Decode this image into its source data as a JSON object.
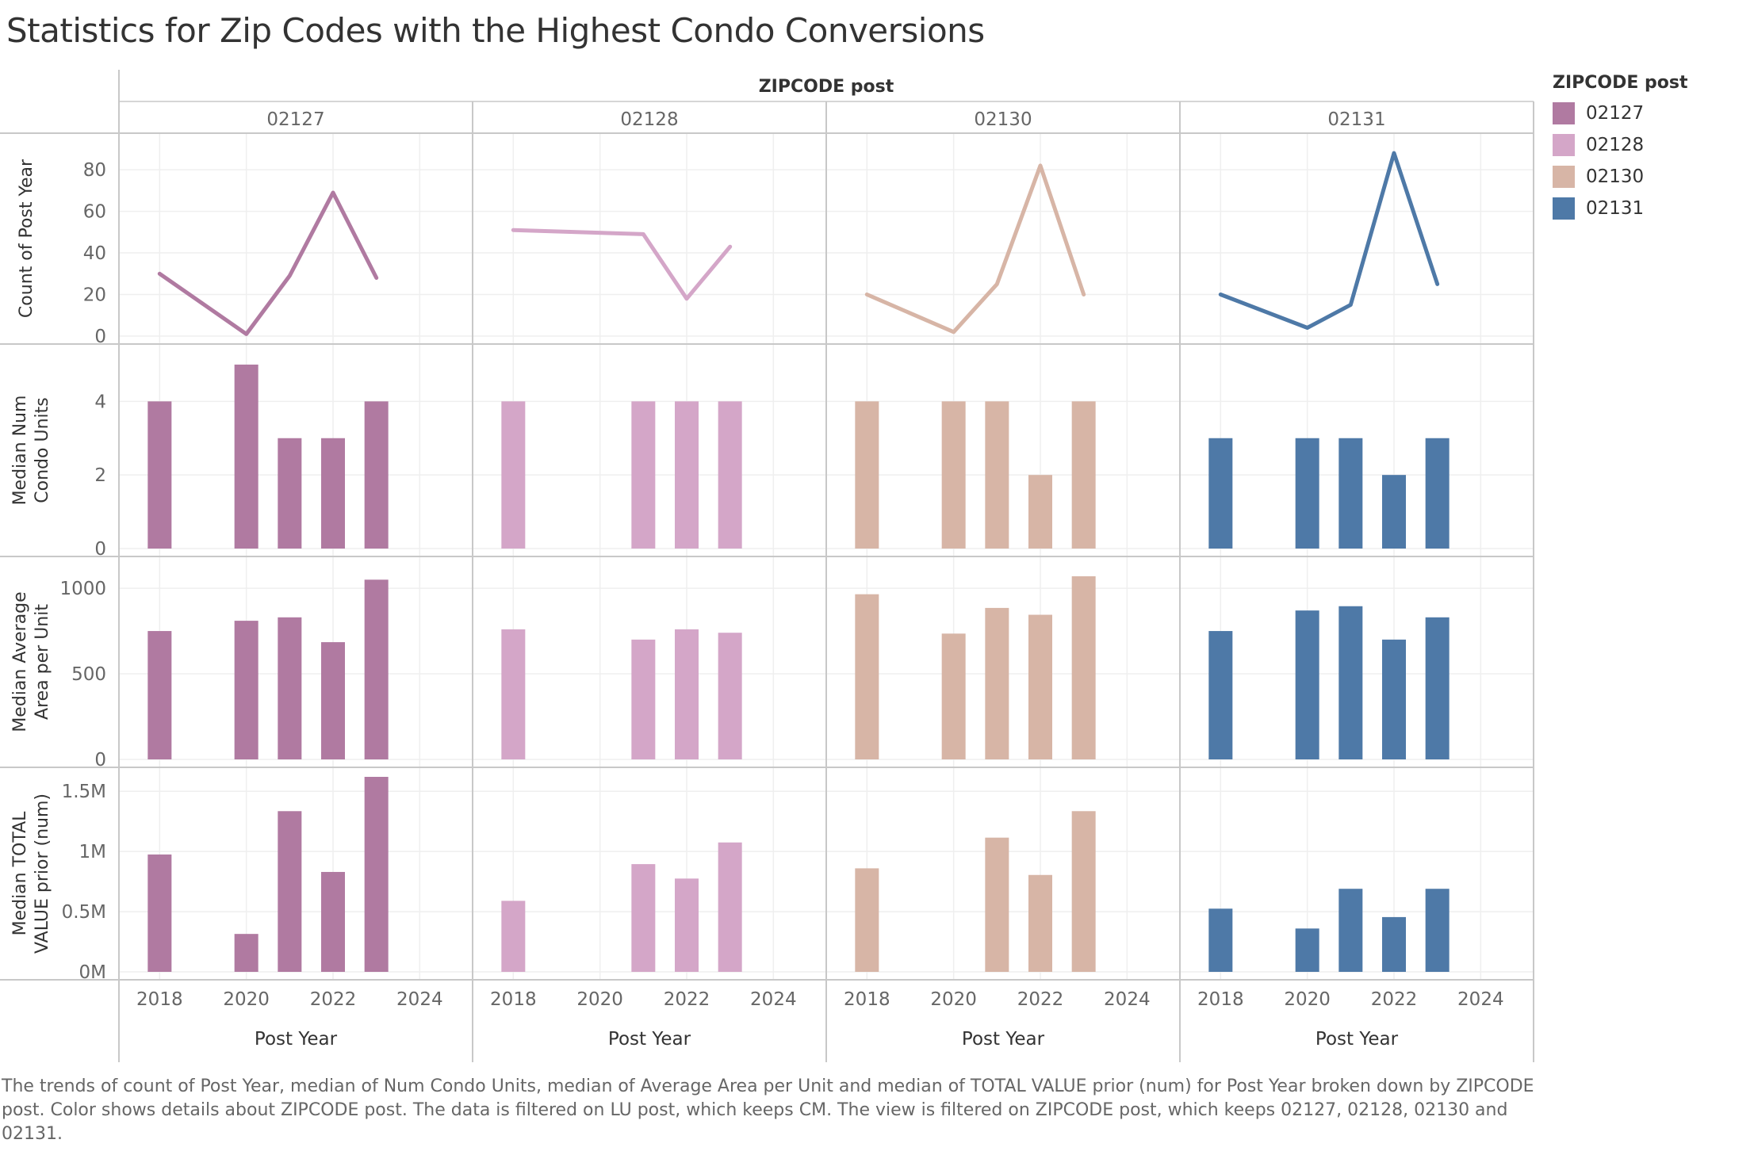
{
  "title": "Statistics for Zip Codes with the Highest Condo Conversions",
  "caption": "The trends of count of Post Year, median of Num Condo Units, median of Average Area per Unit and median of TOTAL VALUE prior (num) for Post Year broken down by ZIPCODE post.  Color shows details about ZIPCODE post. The data is filtered on LU post, which keeps CM. The view is filtered on ZIPCODE post, which keeps 02127, 02128, 02130 and 02131.",
  "legend": {
    "title": "ZIPCODE post",
    "items": [
      {
        "label": "02127",
        "color": "#B07AA1"
      },
      {
        "label": "02128",
        "color": "#D4A6C8"
      },
      {
        "label": "02130",
        "color": "#D7B5A6"
      },
      {
        "label": "02131",
        "color": "#4E79A7"
      }
    ]
  },
  "chart_data": {
    "type": "line-and-bar small multiples",
    "column_header": "ZIPCODE post",
    "columns": [
      "02127",
      "02128",
      "02130",
      "02131"
    ],
    "xlabel": "Post Year",
    "x_ticks": [
      "2018",
      "2020",
      "2022",
      "2024"
    ],
    "xlim": [
      2017.5,
      2025
    ],
    "rows": [
      {
        "ylabel": "Count of Post Year",
        "mark": "line",
        "ylim": [
          0,
          93
        ],
        "y_ticks": [
          {
            "v": 0,
            "t": "0"
          },
          {
            "v": 20,
            "t": "20"
          },
          {
            "v": 40,
            "t": "40"
          },
          {
            "v": 60,
            "t": "60"
          },
          {
            "v": 80,
            "t": "80"
          }
        ],
        "series": [
          {
            "name": "02127",
            "points": [
              {
                "x": 2018,
                "y": 30
              },
              {
                "x": 2020,
                "y": 1
              },
              {
                "x": 2021,
                "y": 29
              },
              {
                "x": 2022,
                "y": 69
              },
              {
                "x": 2023,
                "y": 28
              }
            ]
          },
          {
            "name": "02128",
            "points": [
              {
                "x": 2018,
                "y": 51
              },
              {
                "x": 2021,
                "y": 49
              },
              {
                "x": 2022,
                "y": 18
              },
              {
                "x": 2023,
                "y": 43
              }
            ]
          },
          {
            "name": "02130",
            "points": [
              {
                "x": 2018,
                "y": 20
              },
              {
                "x": 2020,
                "y": 2
              },
              {
                "x": 2021,
                "y": 25
              },
              {
                "x": 2022,
                "y": 82
              },
              {
                "x": 2023,
                "y": 20
              }
            ]
          },
          {
            "name": "02131",
            "points": [
              {
                "x": 2018,
                "y": 20
              },
              {
                "x": 2020,
                "y": 4
              },
              {
                "x": 2021,
                "y": 15
              },
              {
                "x": 2022,
                "y": 88
              },
              {
                "x": 2023,
                "y": 25
              }
            ]
          }
        ]
      },
      {
        "ylabel": "Median Num Condo Units",
        "mark": "bar",
        "ylim": [
          0,
          5.3
        ],
        "y_ticks": [
          {
            "v": 0,
            "t": "0"
          },
          {
            "v": 2,
            "t": "2"
          },
          {
            "v": 4,
            "t": "4"
          }
        ],
        "series": [
          {
            "name": "02127",
            "points": [
              {
                "x": 2018,
                "y": 4
              },
              {
                "x": 2020,
                "y": 5
              },
              {
                "x": 2021,
                "y": 3
              },
              {
                "x": 2022,
                "y": 3
              },
              {
                "x": 2023,
                "y": 4
              }
            ]
          },
          {
            "name": "02128",
            "points": [
              {
                "x": 2018,
                "y": 4
              },
              {
                "x": 2021,
                "y": 4
              },
              {
                "x": 2022,
                "y": 4
              },
              {
                "x": 2023,
                "y": 4
              }
            ]
          },
          {
            "name": "02130",
            "points": [
              {
                "x": 2018,
                "y": 4
              },
              {
                "x": 2020,
                "y": 4
              },
              {
                "x": 2021,
                "y": 4
              },
              {
                "x": 2022,
                "y": 2
              },
              {
                "x": 2023,
                "y": 4
              }
            ]
          },
          {
            "name": "02131",
            "points": [
              {
                "x": 2018,
                "y": 3
              },
              {
                "x": 2020,
                "y": 3
              },
              {
                "x": 2021,
                "y": 3
              },
              {
                "x": 2022,
                "y": 2
              },
              {
                "x": 2023,
                "y": 3
              }
            ]
          }
        ]
      },
      {
        "ylabel": "Median Average Area per Unit",
        "mark": "bar",
        "ylim": [
          0,
          1130
        ],
        "y_ticks": [
          {
            "v": 0,
            "t": "0"
          },
          {
            "v": 500,
            "t": "500"
          },
          {
            "v": 1000,
            "t": "1000"
          }
        ],
        "series": [
          {
            "name": "02127",
            "points": [
              {
                "x": 2018,
                "y": 750
              },
              {
                "x": 2020,
                "y": 810
              },
              {
                "x": 2021,
                "y": 830
              },
              {
                "x": 2022,
                "y": 685
              },
              {
                "x": 2023,
                "y": 1050
              }
            ]
          },
          {
            "name": "02128",
            "points": [
              {
                "x": 2018,
                "y": 760
              },
              {
                "x": 2021,
                "y": 700
              },
              {
                "x": 2022,
                "y": 760
              },
              {
                "x": 2023,
                "y": 740
              }
            ]
          },
          {
            "name": "02130",
            "points": [
              {
                "x": 2018,
                "y": 965
              },
              {
                "x": 2020,
                "y": 735
              },
              {
                "x": 2021,
                "y": 885
              },
              {
                "x": 2022,
                "y": 845
              },
              {
                "x": 2023,
                "y": 1070
              }
            ]
          },
          {
            "name": "02131",
            "points": [
              {
                "x": 2018,
                "y": 750
              },
              {
                "x": 2020,
                "y": 870
              },
              {
                "x": 2021,
                "y": 895
              },
              {
                "x": 2022,
                "y": 700
              },
              {
                "x": 2023,
                "y": 830
              }
            ]
          }
        ]
      },
      {
        "ylabel": "Median TOTAL VALUE prior (num)",
        "mark": "bar",
        "ylim": [
          0,
          1620000
        ],
        "y_ticks": [
          {
            "v": 0,
            "t": "0M"
          },
          {
            "v": 500000,
            "t": "0.5M"
          },
          {
            "v": 1000000,
            "t": "1M"
          },
          {
            "v": 1500000,
            "t": "1.5M"
          }
        ],
        "series": [
          {
            "name": "02127",
            "points": [
              {
                "x": 2018,
                "y": 975000
              },
              {
                "x": 2020,
                "y": 315000
              },
              {
                "x": 2021,
                "y": 1335000
              },
              {
                "x": 2022,
                "y": 830000
              },
              {
                "x": 2023,
                "y": 1620000
              }
            ]
          },
          {
            "name": "02128",
            "points": [
              {
                "x": 2018,
                "y": 590000
              },
              {
                "x": 2021,
                "y": 895000
              },
              {
                "x": 2022,
                "y": 775000
              },
              {
                "x": 2023,
                "y": 1075000
              }
            ]
          },
          {
            "name": "02130",
            "points": [
              {
                "x": 2018,
                "y": 860000
              },
              {
                "x": 2021,
                "y": 1115000
              },
              {
                "x": 2022,
                "y": 805000
              },
              {
                "x": 2023,
                "y": 1335000
              }
            ]
          },
          {
            "name": "02131",
            "points": [
              {
                "x": 2018,
                "y": 525000
              },
              {
                "x": 2020,
                "y": 360000
              },
              {
                "x": 2021,
                "y": 690000
              },
              {
                "x": 2022,
                "y": 455000
              },
              {
                "x": 2023,
                "y": 690000
              }
            ]
          }
        ]
      }
    ]
  }
}
